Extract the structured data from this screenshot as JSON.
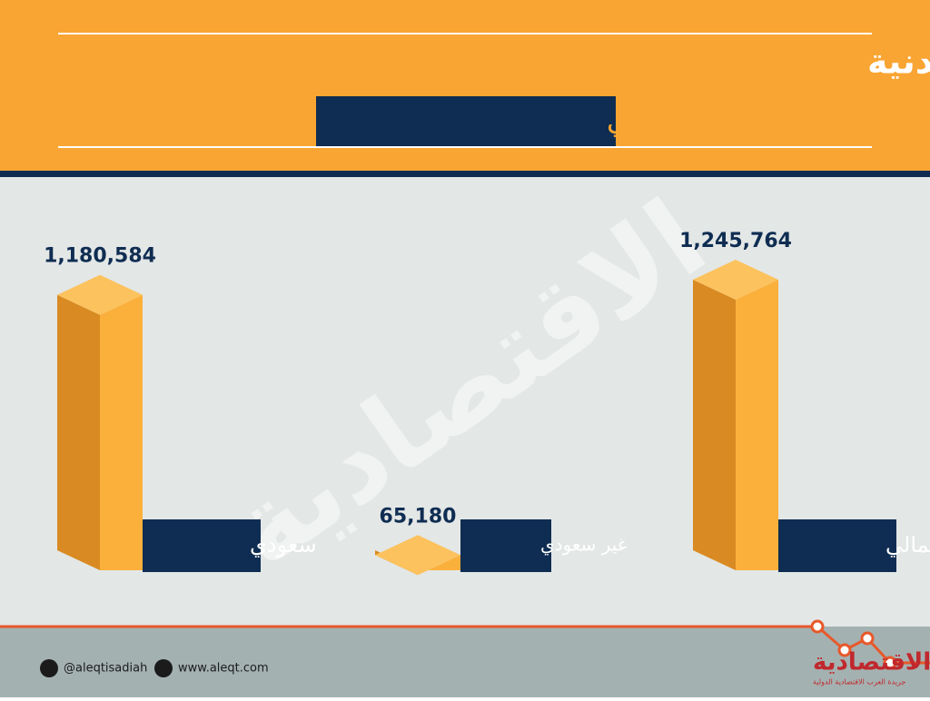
{
  "chart_data": {
    "type": "bar3d",
    "title": "عدد العاملين الخاضعين لأنظمة الخدمة  المدنية",
    "subtitle": "بنهاية الربع الثاني",
    "categories": [
      "سعودي",
      "غير سعودي",
      "الإجمالي"
    ],
    "values": [
      1180584,
      65180,
      1245764
    ],
    "value_labels": [
      "1,180,584",
      "65,180",
      "1,245,764"
    ],
    "color": "#fbb03b"
  },
  "watermark": "الاقتصادية",
  "footer": {
    "twitter": "@aleqtisadiah",
    "website": "www.aleqt.com",
    "logo": "الاقتصادية",
    "logo_subtitle": "جريدة العرب الاقتصادية الدولية"
  }
}
